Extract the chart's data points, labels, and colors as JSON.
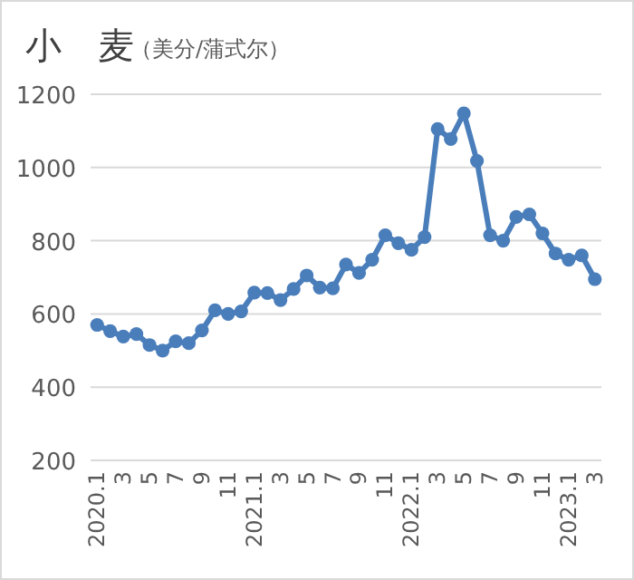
{
  "chart_data": {
    "type": "line",
    "title": "小　麦",
    "subtitle": "（美分/蒲式尔）",
    "categories": [
      "2020.1",
      null,
      "3",
      null,
      "5",
      null,
      "7",
      null,
      "9",
      null,
      "11",
      null,
      "2021.1",
      null,
      "3",
      null,
      "5",
      null,
      "7",
      null,
      "9",
      null,
      "11",
      null,
      "2022.1",
      null,
      "3",
      null,
      "5",
      null,
      "7",
      null,
      "9",
      null,
      "11",
      null,
      "2023.1",
      null,
      "3"
    ],
    "series": [
      {
        "color": "#4a7ebb",
        "values": [
          570,
          553,
          538,
          545,
          515,
          500,
          525,
          520,
          555,
          610,
          600,
          607,
          658,
          657,
          638,
          668,
          705,
          672,
          670,
          735,
          712,
          748,
          815,
          793,
          775,
          810,
          1105,
          1078,
          1148,
          1018,
          815,
          800,
          865,
          872,
          820,
          765,
          748,
          760,
          695
        ]
      }
    ],
    "ylim": [
      200,
      1200
    ],
    "yticks": [
      200,
      400,
      600,
      800,
      1000,
      1200
    ],
    "grid": "y",
    "marker": "circle",
    "line_style": "solid"
  }
}
